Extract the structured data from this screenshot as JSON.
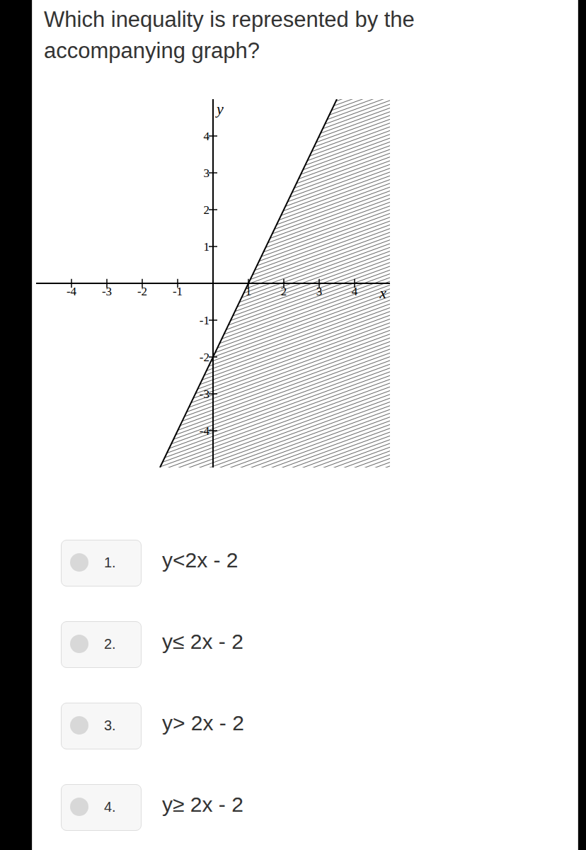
{
  "question": "Which inequality is represented by the accompanying graph?",
  "chart_data": {
    "type": "area",
    "x_label": "x",
    "y_label": "y",
    "xlim": [
      -5,
      5
    ],
    "ylim": [
      -5,
      5
    ],
    "xticks": [
      -4,
      -3,
      -2,
      -1,
      1,
      2,
      3,
      4
    ],
    "yticks": [
      -4,
      -3,
      -2,
      -1,
      1,
      2,
      3,
      4
    ],
    "x": [
      -1.5,
      3.5
    ],
    "values": [
      -5,
      5
    ],
    "line_style": "solid",
    "color": "#000000"
  },
  "options": [
    {
      "number": "1.",
      "text": "y<2x - 2"
    },
    {
      "number": "2.",
      "text": "y≤ 2x - 2"
    },
    {
      "number": "3.",
      "text": "y> 2x - 2"
    },
    {
      "number": "4.",
      "text": "y≥ 2x - 2"
    }
  ]
}
